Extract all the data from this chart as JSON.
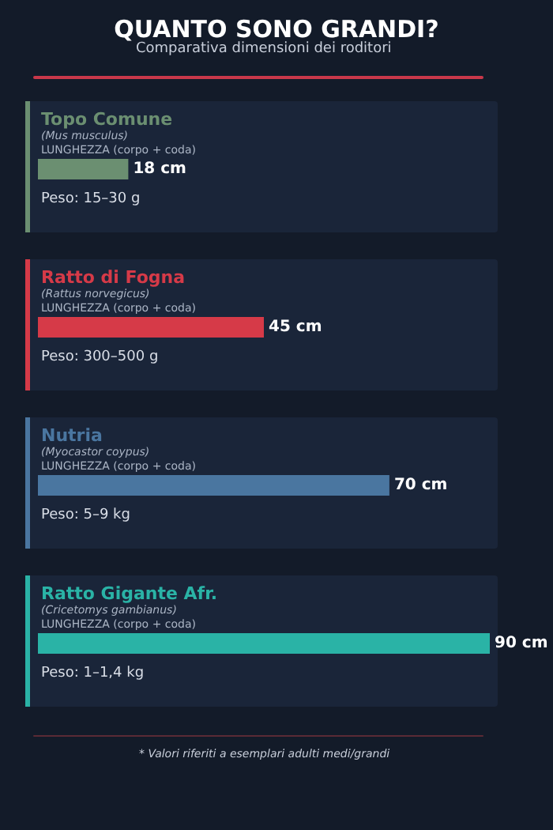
{
  "chart_data": {
    "type": "bar",
    "orientation": "horizontal",
    "title": "QUANTO SONO GRANDI?",
    "subtitle": "Comparativa dimensioni dei roditori",
    "categories": [
      "Topo Comune",
      "Ratto di Fogna",
      "Nutria",
      "Ratto Gigante Afr."
    ],
    "values": [
      18,
      45,
      70,
      90
    ],
    "value_labels": [
      "18 cm",
      "45 cm",
      "70 cm",
      "90 cm"
    ],
    "colors": [
      "#6b8f71",
      "#d63a48",
      "#4a76a0",
      "#2ab3a6"
    ],
    "xlim": [
      0,
      90
    ],
    "tick_labels": false,
    "grid": false,
    "annotations": [
      "(Mus musculus)",
      "LUNGHEZZA (corpo + coda)",
      "Peso: 15–30 g",
      "(Rattus norvegicus)",
      "LUNGHEZZA (corpo + coda)",
      "Peso: 300–500 g",
      "(Myocastor coypus)",
      "LUNGHEZZA (corpo + coda)",
      "Peso: 5–9 kg",
      "(Cricetomys gambianus)",
      "LUNGHEZZA (corpo + coda)",
      "Peso: 1–1,4 kg",
      "* Valori riferiti a esemplari adulti medi/grandi"
    ]
  }
}
